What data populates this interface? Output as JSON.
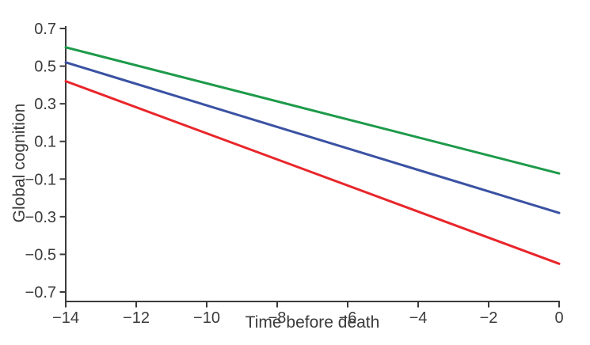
{
  "chart_data": {
    "type": "line",
    "title": "",
    "xlabel": "Time before death",
    "ylabel": "Global cognition",
    "xlim": [
      -14,
      0
    ],
    "ylim": [
      -0.7,
      0.7
    ],
    "x_ticks": [
      -14,
      -12,
      -10,
      -8,
      -6,
      -4,
      -2,
      0
    ],
    "y_ticks": [
      0.7,
      0.5,
      0.3,
      0.1,
      -0.1,
      -0.3,
      -0.5,
      -0.7
    ],
    "grid": false,
    "legend_position": "none",
    "axis_color": "#3b3b3b",
    "text_color": "#3b3b3b",
    "background_color": "#ffffff",
    "series": [
      {
        "name": "green-line",
        "color": "#1d9a4a",
        "x": [
          -14,
          0
        ],
        "y": [
          0.6,
          -0.07
        ]
      },
      {
        "name": "blue-line",
        "color": "#3b52a3",
        "x": [
          -14,
          0
        ],
        "y": [
          0.52,
          -0.28
        ]
      },
      {
        "name": "red-line",
        "color": "#e8262b",
        "x": [
          -14,
          0
        ],
        "y": [
          0.42,
          -0.55
        ]
      }
    ]
  }
}
